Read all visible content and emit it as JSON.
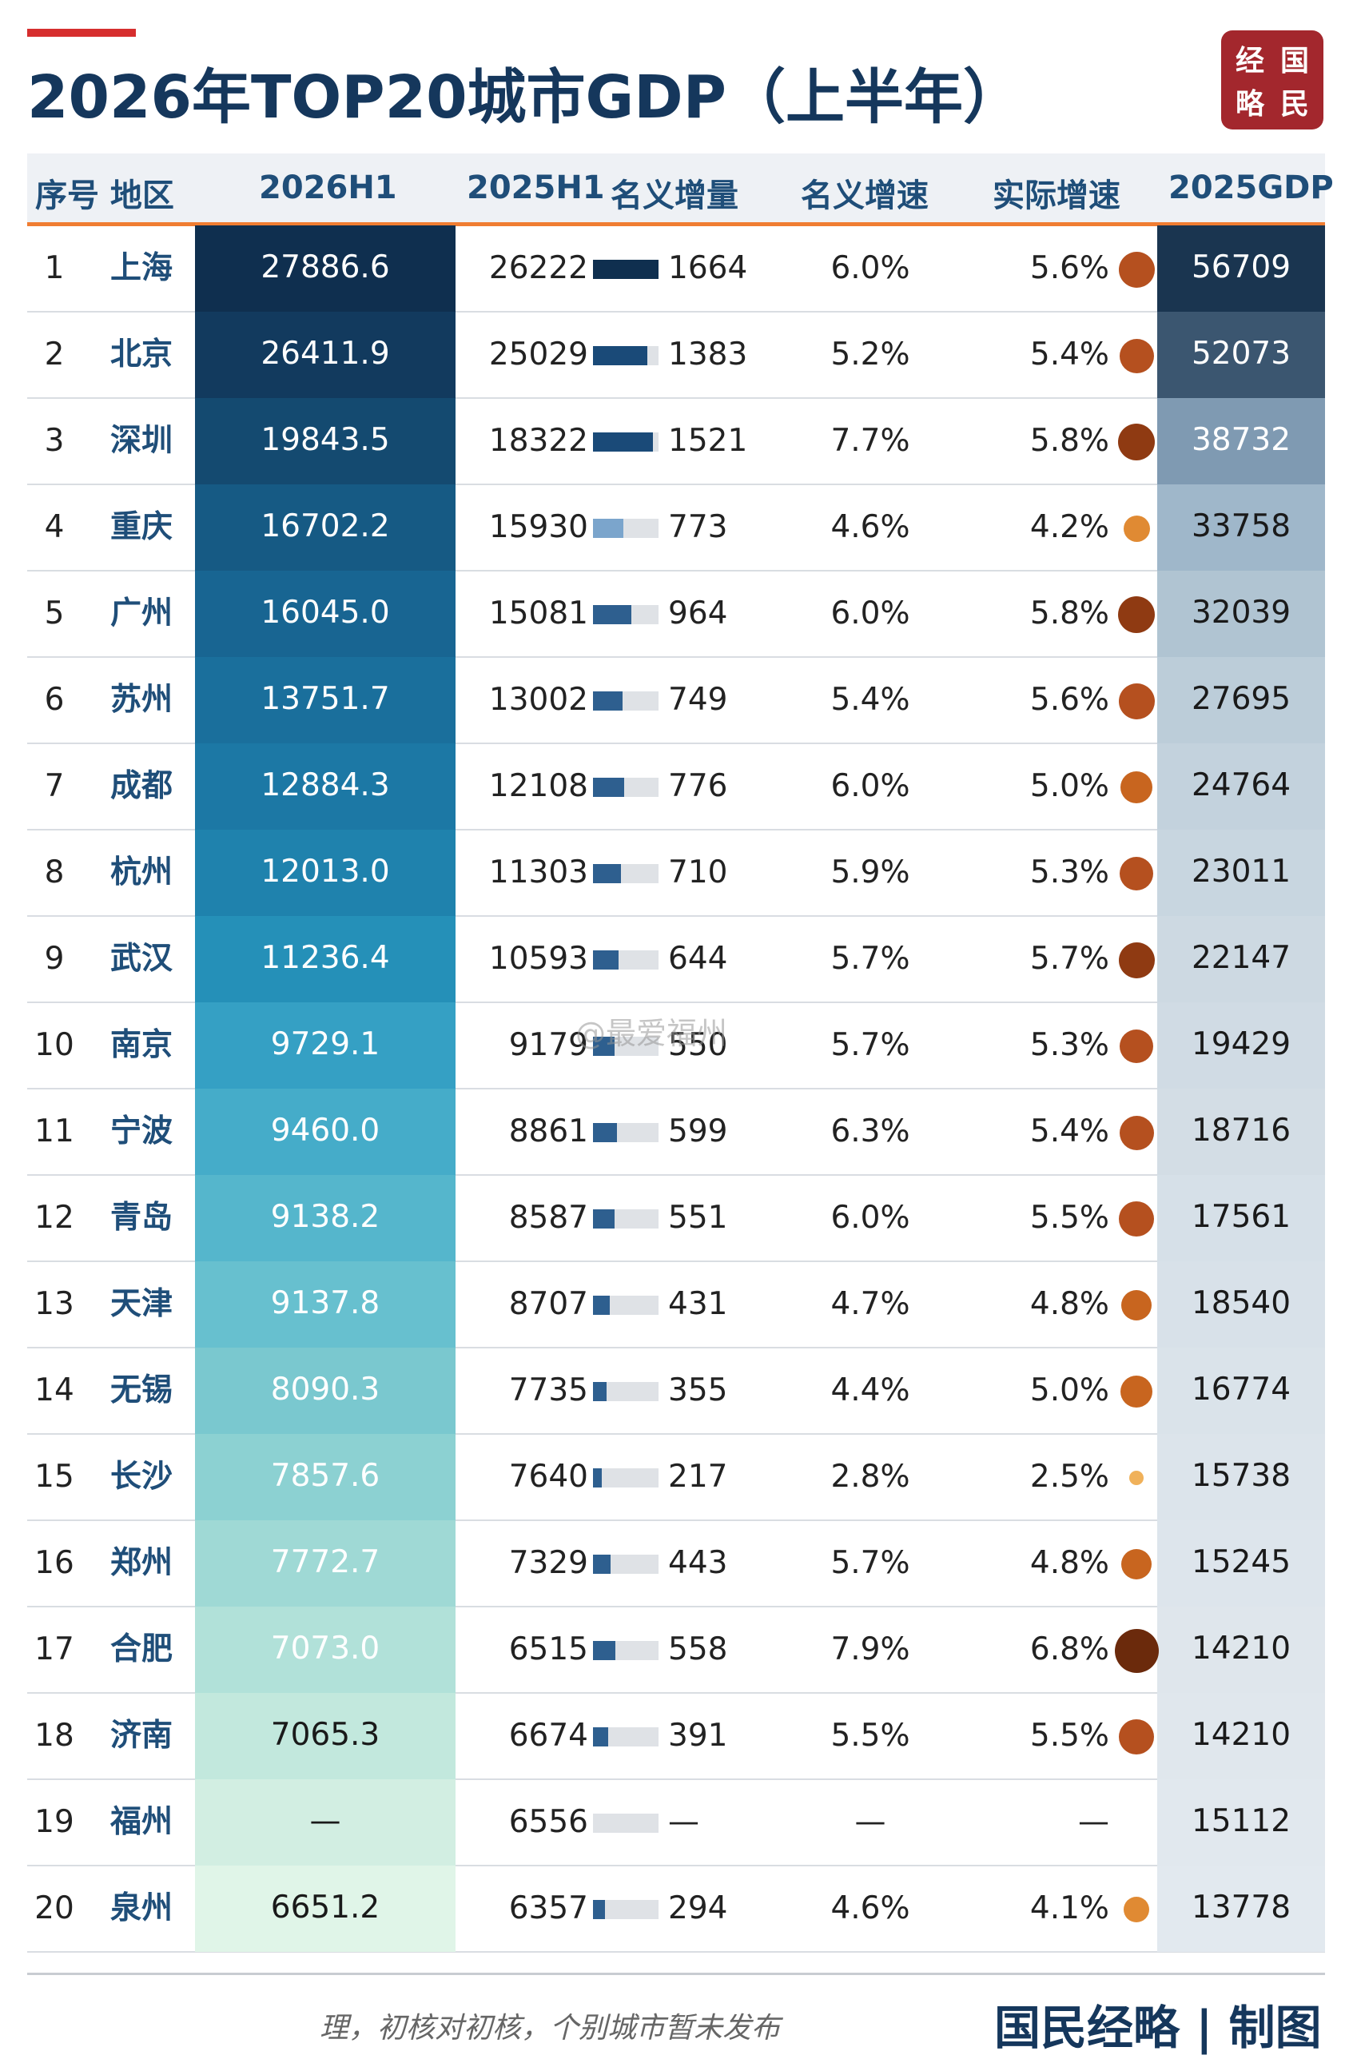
{
  "title": "2026年TOP20城市GDP（上半年）",
  "logo": [
    "经",
    "国",
    "略",
    "民"
  ],
  "headers": {
    "seq_region": "序号 地区",
    "h1_2026": "2026H1",
    "h1_2025": "2025H1",
    "nominal_increase": "名义增量",
    "nominal_growth": "名义增速",
    "real_growth": "实际增速",
    "gdp_2025": "2025GDP"
  },
  "rows": [
    {
      "rank": "1",
      "city": "上海",
      "h1_2026": "27886.6",
      "h1_2025": "26222",
      "increase": "1664",
      "increase_share": 1.0,
      "nominal": "6.0%",
      "real": "5.6%",
      "gdp_2025": "56709"
    },
    {
      "rank": "2",
      "city": "北京",
      "h1_2026": "26411.9",
      "h1_2025": "25029",
      "increase": "1383",
      "increase_share": 0.83,
      "nominal": "5.2%",
      "real": "5.4%",
      "gdp_2025": "52073"
    },
    {
      "rank": "3",
      "city": "深圳",
      "h1_2026": "19843.5",
      "h1_2025": "18322",
      "increase": "1521",
      "increase_share": 0.91,
      "nominal": "7.7%",
      "real": "5.8%",
      "gdp_2025": "38732"
    },
    {
      "rank": "4",
      "city": "重庆",
      "h1_2026": "16702.2",
      "h1_2025": "15930",
      "increase": "773",
      "increase_share": 0.46,
      "nominal": "4.6%",
      "real": "4.2%",
      "gdp_2025": "33758"
    },
    {
      "rank": "5",
      "city": "广州",
      "h1_2026": "16045.0",
      "h1_2025": "15081",
      "increase": "964",
      "increase_share": 0.58,
      "nominal": "6.0%",
      "real": "5.8%",
      "gdp_2025": "32039"
    },
    {
      "rank": "6",
      "city": "苏州",
      "h1_2026": "13751.7",
      "h1_2025": "13002",
      "increase": "749",
      "increase_share": 0.45,
      "nominal": "5.4%",
      "real": "5.6%",
      "gdp_2025": "27695"
    },
    {
      "rank": "7",
      "city": "成都",
      "h1_2026": "12884.3",
      "h1_2025": "12108",
      "increase": "776",
      "increase_share": 0.47,
      "nominal": "6.0%",
      "real": "5.0%",
      "gdp_2025": "24764"
    },
    {
      "rank": "8",
      "city": "杭州",
      "h1_2026": "12013.0",
      "h1_2025": "11303",
      "increase": "710",
      "increase_share": 0.43,
      "nominal": "5.9%",
      "real": "5.3%",
      "gdp_2025": "23011"
    },
    {
      "rank": "9",
      "city": "武汉",
      "h1_2026": "11236.4",
      "h1_2025": "10593",
      "increase": "644",
      "increase_share": 0.39,
      "nominal": "5.7%",
      "real": "5.7%",
      "gdp_2025": "22147"
    },
    {
      "rank": "10",
      "city": "南京",
      "h1_2026": "9729.1",
      "h1_2025": "9179",
      "increase": "550",
      "increase_share": 0.33,
      "nominal": "5.7%",
      "real": "5.3%",
      "gdp_2025": "19429"
    },
    {
      "rank": "11",
      "city": "宁波",
      "h1_2026": "9460.0",
      "h1_2025": "8861",
      "increase": "599",
      "increase_share": 0.36,
      "nominal": "6.3%",
      "real": "5.4%",
      "gdp_2025": "18716"
    },
    {
      "rank": "12",
      "city": "青岛",
      "h1_2026": "9138.2",
      "h1_2025": "8587",
      "increase": "551",
      "increase_share": 0.33,
      "nominal": "6.0%",
      "real": "5.5%",
      "gdp_2025": "17561"
    },
    {
      "rank": "13",
      "city": "天津",
      "h1_2026": "9137.8",
      "h1_2025": "8707",
      "increase": "431",
      "increase_share": 0.26,
      "nominal": "4.7%",
      "real": "4.8%",
      "gdp_2025": "18540"
    },
    {
      "rank": "14",
      "city": "无锡",
      "h1_2026": "8090.3",
      "h1_2025": "7735",
      "increase": "355",
      "increase_share": 0.21,
      "nominal": "4.4%",
      "real": "5.0%",
      "gdp_2025": "16774"
    },
    {
      "rank": "15",
      "city": "长沙",
      "h1_2026": "7857.6",
      "h1_2025": "7640",
      "increase": "217",
      "increase_share": 0.13,
      "nominal": "2.8%",
      "real": "2.5%",
      "gdp_2025": "15738"
    },
    {
      "rank": "16",
      "city": "郑州",
      "h1_2026": "7772.7",
      "h1_2025": "7329",
      "increase": "443",
      "increase_share": 0.27,
      "nominal": "5.7%",
      "real": "4.8%",
      "gdp_2025": "15245"
    },
    {
      "rank": "17",
      "city": "合肥",
      "h1_2026": "7073.0",
      "h1_2025": "6515",
      "increase": "558",
      "increase_share": 0.34,
      "nominal": "7.9%",
      "real": "6.8%",
      "gdp_2025": "14210"
    },
    {
      "rank": "18",
      "city": "济南",
      "h1_2026": "7065.3",
      "h1_2025": "6674",
      "increase": "391",
      "increase_share": 0.23,
      "nominal": "5.5%",
      "real": "5.5%",
      "gdp_2025": "14210"
    },
    {
      "rank": "19",
      "city": "福州",
      "h1_2026": "—",
      "h1_2025": "6556",
      "increase": "—",
      "increase_share": 0,
      "nominal": "—",
      "real": "—",
      "gdp_2025": "15112"
    },
    {
      "rank": "20",
      "city": "泉州",
      "h1_2026": "6651.2",
      "h1_2025": "6357",
      "increase": "294",
      "increase_share": 0.18,
      "nominal": "4.6%",
      "real": "4.1%",
      "gdp_2025": "13778"
    }
  ],
  "h1_colors": [
    "#0f2f4f",
    "#123a5e",
    "#144a70",
    "#165a84",
    "#186592",
    "#1a6f9c",
    "#1c78a5",
    "#1f82ad",
    "#2590b8",
    "#35a0c4",
    "#45acc9",
    "#55b6cc",
    "#67c0cf",
    "#7ac8cf",
    "#8cd1d2",
    "#9fd9d5",
    "#b1e1d9",
    "#c2e8dd",
    "#d2eee2",
    "#e0f5e8"
  ],
  "gdp_colors": [
    "#1a3550",
    "#3b5670",
    "#7f9ab2",
    "#9fb7ca",
    "#b0c4d2",
    "#bccdd9",
    "#c3d2dd",
    "#c8d6e0",
    "#cdd9e2",
    "#d0dbe4",
    "#d3dde5",
    "#d6e0e8",
    "#d8e1e9",
    "#dae3ea",
    "#dce4eb",
    "#dde5ec",
    "#dfe6ec",
    "#e0e7ed",
    "#e1e8ee",
    "#e2e9ef"
  ],
  "bar_color_dark": "#0f2f4f",
  "bar_color_mid": "#2e5f8f",
  "bar_color_light": "#7ba5cc",
  "dot_color_dark": "#6b2a0c",
  "dot_color_mid": "#b5501f",
  "dot_color_light": "#f0b15a",
  "footer_note": "理，初核对初核，个别城市暂未发布",
  "footer_brand": "国民经略 | 制图",
  "watermark": "@最爱福州"
}
